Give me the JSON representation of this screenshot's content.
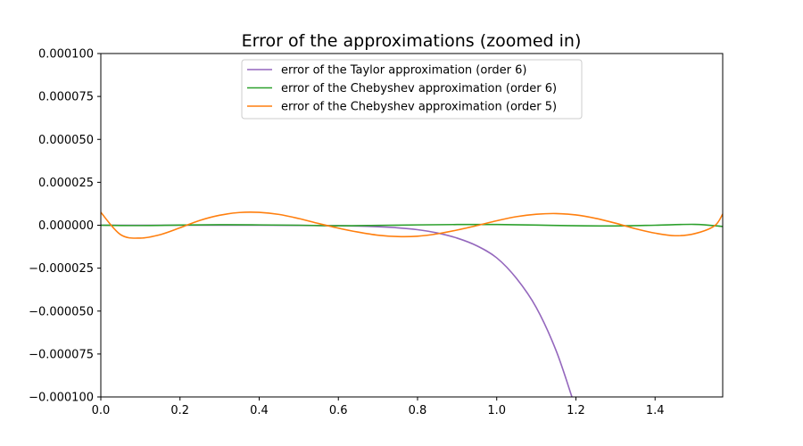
{
  "chart_data": {
    "type": "line",
    "title": "Error of the approximations (zoomed in)",
    "xlabel": "",
    "ylabel": "",
    "xlim": [
      0,
      1.5708
    ],
    "ylim": [
      -0.0001,
      0.0001
    ],
    "x_ticks": [
      0.0,
      0.2,
      0.4,
      0.6,
      0.8,
      1.0,
      1.2,
      1.4
    ],
    "x_tick_labels": [
      "0.0",
      "0.2",
      "0.4",
      "0.6",
      "0.8",
      "1.0",
      "1.2",
      "1.4"
    ],
    "y_ticks": [
      0.0001,
      7.5e-05,
      5e-05,
      2.5e-05,
      0,
      -2.5e-05,
      -5e-05,
      -7.5e-05,
      -0.0001
    ],
    "y_tick_labels": [
      "0.000100",
      "0.000075",
      "0.000050",
      "0.000025",
      "0.000000",
      "−0.000025",
      "−0.000050",
      "−0.000075",
      "−0.000100"
    ],
    "grid": false,
    "legend_position": "upper-center",
    "series": [
      {
        "name": "error of the Taylor approximation (order 6)",
        "color": "#9467bd",
        "x": [
          0.0,
          0.1,
          0.2,
          0.3,
          0.4,
          0.5,
          0.6,
          0.65,
          0.7,
          0.75,
          0.8,
          0.85,
          0.9,
          0.95,
          1.0,
          1.05,
          1.1,
          1.15,
          1.19
        ],
        "y": [
          0.0,
          0.0,
          0.0,
          0.0,
          0.0,
          -1e-07,
          -3e-07,
          -5e-07,
          -9e-07,
          -1.5e-06,
          -2.6e-06,
          -4.5e-06,
          -7.5e-06,
          -1.2e-05,
          -1.9e-05,
          -3.1e-05,
          -4.8e-05,
          -7.3e-05,
          -0.0001
        ]
      },
      {
        "name": "error of the Chebyshev approximation (order 6)",
        "color": "#2ca02c",
        "x": [
          0.0,
          0.1,
          0.2,
          0.3,
          0.4,
          0.5,
          0.6,
          0.7,
          0.8,
          0.9,
          1.0,
          1.1,
          1.2,
          1.3,
          1.4,
          1.5,
          1.5708
        ],
        "y": [
          0.0,
          -2e-07,
          1e-07,
          3e-07,
          2e-07,
          0.0,
          -3e-07,
          -1e-07,
          2e-07,
          4e-07,
          4e-07,
          1e-07,
          -3e-07,
          -4e-07,
          0.0,
          5e-07,
          -7e-07
        ]
      },
      {
        "name": "error of the Chebyshev approximation (order 5)",
        "color": "#ff7f0e",
        "x": [
          0.0,
          0.05,
          0.1,
          0.15,
          0.2,
          0.25,
          0.3,
          0.35,
          0.4,
          0.45,
          0.5,
          0.55,
          0.6,
          0.65,
          0.7,
          0.75,
          0.8,
          0.85,
          0.9,
          0.95,
          1.0,
          1.05,
          1.1,
          1.15,
          1.2,
          1.25,
          1.3,
          1.35,
          1.4,
          1.45,
          1.5,
          1.55,
          1.5708
        ],
        "y": [
          7.5e-06,
          -5.5e-06,
          -7.5e-06,
          -5.5e-06,
          -1.5e-06,
          2.8e-06,
          5.8e-06,
          7.4e-06,
          7.5e-06,
          6.3e-06,
          3.9e-06,
          1e-06,
          -1.7e-06,
          -4e-06,
          -5.8e-06,
          -6.6e-06,
          -6.4e-06,
          -5e-06,
          -2.8e-06,
          -2e-07,
          2.6e-06,
          5e-06,
          6.4e-06,
          6.8e-06,
          6e-06,
          4e-06,
          1.2e-06,
          -2e-06,
          -4.6e-06,
          -6.1e-06,
          -4.9e-06,
          -4e-07,
          6.5e-06
        ]
      }
    ]
  }
}
